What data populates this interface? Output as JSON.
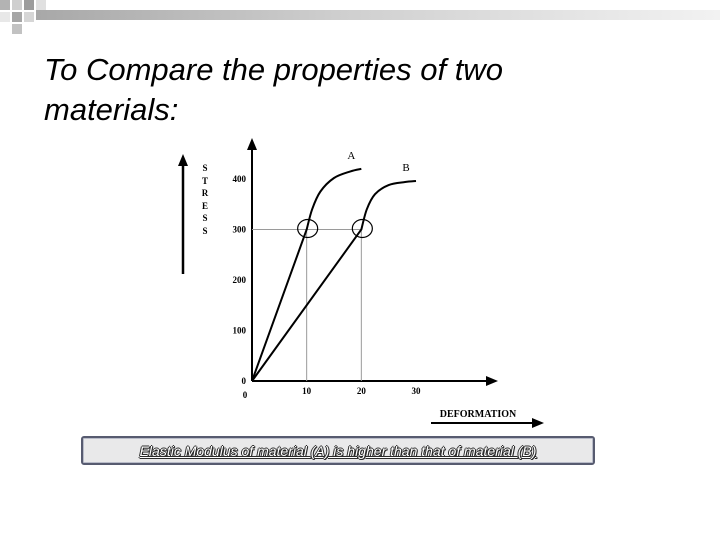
{
  "slide": {
    "title": "To Compare the properties of two materials:",
    "caption": "Elastic Modulus of material (A) is higher than that of material (B)"
  },
  "colors": {
    "ink": "#000000",
    "guide": "#9a9a9a",
    "caption_border": "#575b70",
    "caption_fill": "#e9e9ea"
  },
  "chart_data": {
    "type": "line",
    "title": "",
    "xlabel": "DEFORMATION",
    "ylabel": "STRESS",
    "xlim": [
      0,
      30
    ],
    "ylim": [
      0,
      400
    ],
    "x_ticks": [
      "10",
      "20",
      "30"
    ],
    "y_ticks": [
      "0",
      "100",
      "200",
      "300",
      "400"
    ],
    "origin_x_label": "0",
    "grid": false,
    "series": [
      {
        "name": "A",
        "points": [
          [
            0,
            0
          ],
          [
            10,
            300
          ],
          [
            11,
            340
          ],
          [
            12.5,
            375
          ],
          [
            15,
            402
          ],
          [
            18,
            415
          ],
          [
            20,
            420
          ]
        ]
      },
      {
        "name": "B",
        "points": [
          [
            0,
            0
          ],
          [
            20,
            300
          ],
          [
            21,
            340
          ],
          [
            22.5,
            370
          ],
          [
            25,
            388
          ],
          [
            28,
            394
          ],
          [
            30,
            396
          ]
        ]
      }
    ],
    "annotations": [
      {
        "series": "A",
        "at": [
          10,
          300
        ],
        "marker": "circle",
        "guides_to_axes": true
      },
      {
        "series": "B",
        "at": [
          20,
          300
        ],
        "marker": "circle",
        "guides_to_axes": true
      }
    ]
  }
}
